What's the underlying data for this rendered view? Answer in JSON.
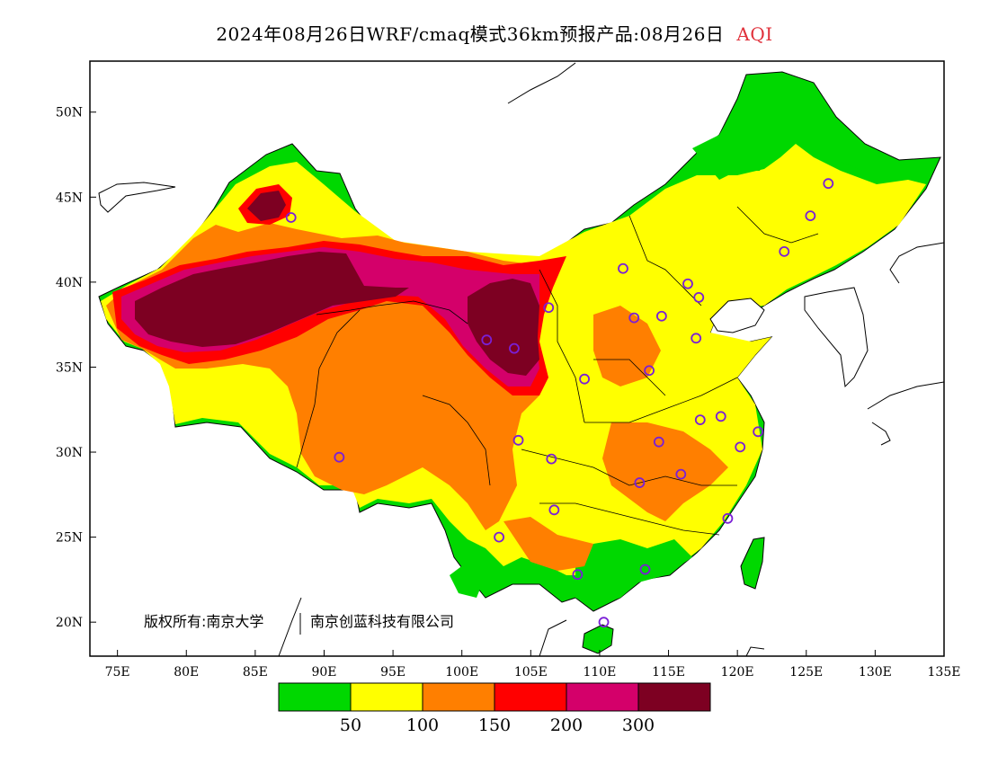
{
  "header": {
    "title": "2024年08月26日WRF/cmaq模式36km预报产品:08月26日",
    "variable": "AQI"
  },
  "map": {
    "lon_range": [
      73,
      135
    ],
    "lat_range": [
      18,
      53
    ],
    "x_ticks": [
      "75E",
      "80E",
      "85E",
      "90E",
      "95E",
      "100E",
      "105E",
      "110E",
      "115E",
      "120E",
      "125E",
      "130E",
      "135E"
    ],
    "x_tick_values": [
      75,
      80,
      85,
      90,
      95,
      100,
      105,
      110,
      115,
      120,
      125,
      130,
      135
    ],
    "y_ticks": [
      "50N",
      "45N",
      "40N",
      "35N",
      "30N",
      "25N",
      "20N"
    ],
    "y_tick_values": [
      50,
      45,
      40,
      35,
      30,
      25,
      20
    ],
    "copyright": "版权所有:南京大学",
    "copyright_2": "南京创蓝科技有限公司"
  },
  "legend": {
    "colors": [
      "#00d800",
      "#ffff00",
      "#ff7f00",
      "#ff0000",
      "#d4006a",
      "#7d0022"
    ],
    "labels": [
      "50",
      "100",
      "150",
      "200",
      "300"
    ]
  },
  "cities": [
    [
      126.6,
      45.8
    ],
    [
      125.3,
      43.9
    ],
    [
      123.4,
      41.8
    ],
    [
      116.4,
      39.9
    ],
    [
      117.2,
      39.1
    ],
    [
      114.5,
      38.0
    ],
    [
      112.5,
      37.9
    ],
    [
      111.7,
      40.8
    ],
    [
      106.3,
      38.5
    ],
    [
      103.8,
      36.1
    ],
    [
      101.8,
      36.6
    ],
    [
      117.0,
      36.7
    ],
    [
      113.6,
      34.8
    ],
    [
      108.9,
      34.3
    ],
    [
      118.8,
      32.1
    ],
    [
      117.3,
      31.9
    ],
    [
      121.5,
      31.2
    ],
    [
      120.2,
      30.3
    ],
    [
      114.3,
      30.6
    ],
    [
      112.9,
      28.2
    ],
    [
      115.9,
      28.7
    ],
    [
      119.3,
      26.1
    ],
    [
      104.1,
      30.7
    ],
    [
      106.5,
      29.6
    ],
    [
      106.7,
      26.6
    ],
    [
      102.7,
      25.0
    ],
    [
      108.4,
      22.8
    ],
    [
      113.3,
      23.1
    ],
    [
      110.3,
      20.0
    ],
    [
      91.1,
      29.7
    ],
    [
      87.6,
      43.8
    ]
  ]
}
